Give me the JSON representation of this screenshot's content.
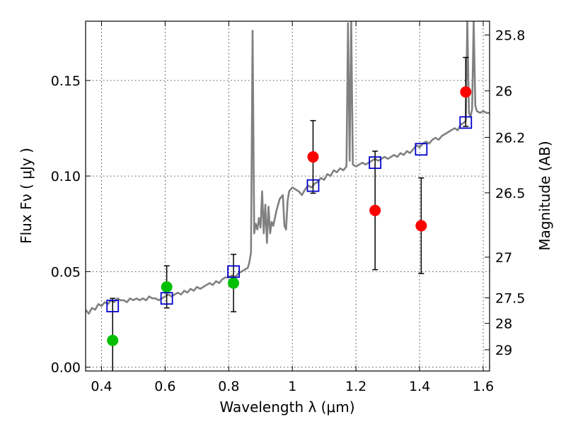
{
  "chart_data": {
    "type": "scatter",
    "title": "",
    "xlabel": "Wavelength  λ (μm)",
    "ylabel": "Flux  Fν  ( μJy )",
    "y2label": "Magnitude (AB)",
    "xlim": [
      0.35,
      1.62
    ],
    "ylim": [
      -0.002,
      0.181
    ],
    "grid": true,
    "x_ticks": [
      {
        "value": 0.4,
        "label": "0.4"
      },
      {
        "value": 0.6,
        "label": "0.6"
      },
      {
        "value": 0.8,
        "label": "0.8"
      },
      {
        "value": 1.0,
        "label": "1"
      },
      {
        "value": 1.2,
        "label": "1.2"
      },
      {
        "value": 1.4,
        "label": "1.4"
      },
      {
        "value": 1.6,
        "label": "1.6"
      }
    ],
    "y_ticks": [
      {
        "value": 0.0,
        "label": "0.00"
      },
      {
        "value": 0.05,
        "label": "0.05"
      },
      {
        "value": 0.1,
        "label": "0.10"
      },
      {
        "value": 0.15,
        "label": "0.15"
      }
    ],
    "y2_ticks": [
      {
        "mag": 25.8,
        "label": "25.8"
      },
      {
        "mag": 26.0,
        "label": "26"
      },
      {
        "mag": 26.2,
        "label": "26.2"
      },
      {
        "mag": 26.5,
        "label": "26.5"
      },
      {
        "mag": 27.0,
        "label": "27"
      },
      {
        "mag": 27.5,
        "label": "27.5"
      },
      {
        "mag": 28.0,
        "label": "28"
      },
      {
        "mag": 29.0,
        "label": "29"
      }
    ],
    "series": [
      {
        "kind": "line",
        "color": "#808080",
        "points": [
          [
            0.35,
            0.03
          ],
          [
            0.36,
            0.028
          ],
          [
            0.37,
            0.031
          ],
          [
            0.38,
            0.03
          ],
          [
            0.39,
            0.033
          ],
          [
            0.4,
            0.032
          ],
          [
            0.41,
            0.034
          ],
          [
            0.42,
            0.033
          ],
          [
            0.43,
            0.035
          ],
          [
            0.44,
            0.034
          ],
          [
            0.45,
            0.036
          ],
          [
            0.46,
            0.035
          ],
          [
            0.47,
            0.035
          ],
          [
            0.48,
            0.034
          ],
          [
            0.49,
            0.036
          ],
          [
            0.5,
            0.035
          ],
          [
            0.51,
            0.036
          ],
          [
            0.52,
            0.035
          ],
          [
            0.53,
            0.036
          ],
          [
            0.54,
            0.035
          ],
          [
            0.55,
            0.037
          ],
          [
            0.56,
            0.036
          ],
          [
            0.57,
            0.036
          ],
          [
            0.58,
            0.035
          ],
          [
            0.59,
            0.036
          ],
          [
            0.6,
            0.037
          ],
          [
            0.61,
            0.038
          ],
          [
            0.62,
            0.037
          ],
          [
            0.63,
            0.038
          ],
          [
            0.64,
            0.039
          ],
          [
            0.65,
            0.038
          ],
          [
            0.66,
            0.04
          ],
          [
            0.67,
            0.039
          ],
          [
            0.68,
            0.041
          ],
          [
            0.69,
            0.04
          ],
          [
            0.7,
            0.042
          ],
          [
            0.71,
            0.041
          ],
          [
            0.72,
            0.042
          ],
          [
            0.73,
            0.043
          ],
          [
            0.74,
            0.044
          ],
          [
            0.75,
            0.043
          ],
          [
            0.76,
            0.045
          ],
          [
            0.77,
            0.044
          ],
          [
            0.78,
            0.046
          ],
          [
            0.79,
            0.047
          ],
          [
            0.8,
            0.047
          ],
          [
            0.81,
            0.048
          ],
          [
            0.82,
            0.047
          ],
          [
            0.83,
            0.049
          ],
          [
            0.84,
            0.05
          ],
          [
            0.85,
            0.051
          ],
          [
            0.86,
            0.052
          ],
          [
            0.865,
            0.055
          ],
          [
            0.87,
            0.06
          ],
          [
            0.875,
            0.176
          ],
          [
            0.88,
            0.07
          ],
          [
            0.885,
            0.075
          ],
          [
            0.89,
            0.072
          ],
          [
            0.895,
            0.078
          ],
          [
            0.9,
            0.073
          ],
          [
            0.905,
            0.092
          ],
          [
            0.91,
            0.07
          ],
          [
            0.915,
            0.085
          ],
          [
            0.92,
            0.065
          ],
          [
            0.925,
            0.084
          ],
          [
            0.93,
            0.07
          ],
          [
            0.935,
            0.076
          ],
          [
            0.94,
            0.074
          ],
          [
            0.95,
            0.082
          ],
          [
            0.96,
            0.088
          ],
          [
            0.97,
            0.09
          ],
          [
            0.975,
            0.074
          ],
          [
            0.98,
            0.072
          ],
          [
            0.985,
            0.087
          ],
          [
            0.99,
            0.092
          ],
          [
            1.0,
            0.094
          ],
          [
            1.01,
            0.093
          ],
          [
            1.02,
            0.092
          ],
          [
            1.03,
            0.09
          ],
          [
            1.04,
            0.093
          ],
          [
            1.05,
            0.095
          ],
          [
            1.06,
            0.094
          ],
          [
            1.07,
            0.096
          ],
          [
            1.08,
            0.097
          ],
          [
            1.09,
            0.099
          ],
          [
            1.1,
            0.098
          ],
          [
            1.11,
            0.101
          ],
          [
            1.12,
            0.1
          ],
          [
            1.13,
            0.103
          ],
          [
            1.14,
            0.102
          ],
          [
            1.15,
            0.104
          ],
          [
            1.16,
            0.103
          ],
          [
            1.17,
            0.105
          ],
          [
            1.175,
            0.18
          ],
          [
            1.18,
            0.108
          ],
          [
            1.185,
            0.181
          ],
          [
            1.19,
            0.106
          ],
          [
            1.2,
            0.105
          ],
          [
            1.21,
            0.106
          ],
          [
            1.22,
            0.107
          ],
          [
            1.23,
            0.106
          ],
          [
            1.24,
            0.107
          ],
          [
            1.25,
            0.108
          ],
          [
            1.26,
            0.109
          ],
          [
            1.27,
            0.108
          ],
          [
            1.28,
            0.109
          ],
          [
            1.29,
            0.11
          ],
          [
            1.3,
            0.109
          ],
          [
            1.31,
            0.11
          ],
          [
            1.32,
            0.111
          ],
          [
            1.33,
            0.11
          ],
          [
            1.34,
            0.112
          ],
          [
            1.35,
            0.111
          ],
          [
            1.36,
            0.113
          ],
          [
            1.37,
            0.112
          ],
          [
            1.38,
            0.114
          ],
          [
            1.39,
            0.116
          ],
          [
            1.4,
            0.115
          ],
          [
            1.41,
            0.117
          ],
          [
            1.42,
            0.118
          ],
          [
            1.43,
            0.117
          ],
          [
            1.44,
            0.119
          ],
          [
            1.45,
            0.12
          ],
          [
            1.46,
            0.119
          ],
          [
            1.47,
            0.121
          ],
          [
            1.48,
            0.122
          ],
          [
            1.49,
            0.123
          ],
          [
            1.5,
            0.124
          ],
          [
            1.51,
            0.125
          ],
          [
            1.52,
            0.124
          ],
          [
            1.53,
            0.127
          ],
          [
            1.54,
            0.128
          ],
          [
            1.545,
            0.129
          ],
          [
            1.55,
            0.181
          ],
          [
            1.555,
            0.133
          ],
          [
            1.56,
            0.131
          ],
          [
            1.565,
            0.135
          ],
          [
            1.57,
            0.181
          ],
          [
            1.575,
            0.137
          ],
          [
            1.58,
            0.134
          ],
          [
            1.59,
            0.133
          ],
          [
            1.6,
            0.134
          ],
          [
            1.61,
            0.133
          ],
          [
            1.62,
            0.133
          ]
        ]
      },
      {
        "kind": "points",
        "marker": "circle",
        "color": "#ff0000",
        "points": [
          {
            "x": 1.065,
            "y": 0.11,
            "err": 0.019
          },
          {
            "x": 1.26,
            "y": 0.082,
            "err": 0.031
          },
          {
            "x": 1.405,
            "y": 0.074,
            "err": 0.025
          },
          {
            "x": 1.545,
            "y": 0.144,
            "err": 0.018
          }
        ]
      },
      {
        "kind": "points",
        "marker": "circle",
        "color": "#00bf00",
        "points": [
          {
            "x": 0.435,
            "y": 0.014,
            "err": 0.022
          },
          {
            "x": 0.605,
            "y": 0.042,
            "err": 0.011
          },
          {
            "x": 0.815,
            "y": 0.044,
            "err": 0.015
          }
        ]
      },
      {
        "kind": "points",
        "marker": "square",
        "color": "#0000cc",
        "points": [
          {
            "x": 0.435,
            "y": 0.032
          },
          {
            "x": 0.605,
            "y": 0.036
          },
          {
            "x": 0.815,
            "y": 0.05
          },
          {
            "x": 1.065,
            "y": 0.095
          },
          {
            "x": 1.26,
            "y": 0.107
          },
          {
            "x": 1.405,
            "y": 0.114
          },
          {
            "x": 1.545,
            "y": 0.128
          }
        ]
      }
    ]
  }
}
